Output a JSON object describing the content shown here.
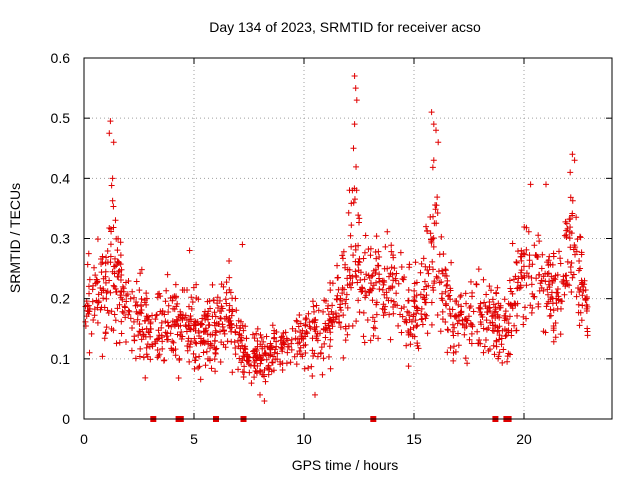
{
  "chart_data": {
    "type": "scatter",
    "title": "Day 134 of 2023, SRMTID for receiver acso",
    "xlabel": "GPS time / hours",
    "ylabel": "SRMTID / TECUs",
    "xlim": [
      0,
      24
    ],
    "ylim": [
      0,
      0.6
    ],
    "x_ticks": [
      0,
      5,
      10,
      15,
      20
    ],
    "x_tick_labels": [
      "0",
      "5",
      "10",
      "15",
      "20"
    ],
    "y_ticks": [
      0,
      0.1,
      0.2,
      0.3,
      0.4,
      0.5,
      0.6
    ],
    "y_tick_labels": [
      "0",
      "0.1",
      "0.2",
      "0.3",
      "0.4",
      "0.5",
      "0.6"
    ],
    "grid": true,
    "marker": "plus",
    "color": "#e00000",
    "profile": [
      [
        0.0,
        0.19,
        0.06
      ],
      [
        0.5,
        0.2,
        0.07
      ],
      [
        1.0,
        0.2,
        0.08
      ],
      [
        1.3,
        0.28,
        0.12
      ],
      [
        1.6,
        0.22,
        0.08
      ],
      [
        2.0,
        0.19,
        0.07
      ],
      [
        2.5,
        0.18,
        0.07
      ],
      [
        3.0,
        0.14,
        0.05
      ],
      [
        3.5,
        0.15,
        0.06
      ],
      [
        4.0,
        0.16,
        0.06
      ],
      [
        4.5,
        0.15,
        0.06
      ],
      [
        5.0,
        0.15,
        0.06
      ],
      [
        5.5,
        0.14,
        0.05
      ],
      [
        6.0,
        0.16,
        0.06
      ],
      [
        6.5,
        0.17,
        0.06
      ],
      [
        7.0,
        0.15,
        0.06
      ],
      [
        7.5,
        0.1,
        0.04
      ],
      [
        8.0,
        0.1,
        0.04
      ],
      [
        8.5,
        0.11,
        0.04
      ],
      [
        9.0,
        0.12,
        0.04
      ],
      [
        9.5,
        0.13,
        0.04
      ],
      [
        10.0,
        0.13,
        0.05
      ],
      [
        10.5,
        0.14,
        0.05
      ],
      [
        11.0,
        0.15,
        0.06
      ],
      [
        11.5,
        0.19,
        0.07
      ],
      [
        12.0,
        0.23,
        0.09
      ],
      [
        12.3,
        0.3,
        0.13
      ],
      [
        12.6,
        0.24,
        0.09
      ],
      [
        13.0,
        0.21,
        0.07
      ],
      [
        13.5,
        0.22,
        0.08
      ],
      [
        14.0,
        0.22,
        0.08
      ],
      [
        14.5,
        0.19,
        0.07
      ],
      [
        15.0,
        0.17,
        0.06
      ],
      [
        15.5,
        0.22,
        0.08
      ],
      [
        15.9,
        0.3,
        0.12
      ],
      [
        16.3,
        0.22,
        0.08
      ],
      [
        16.8,
        0.16,
        0.05
      ],
      [
        17.5,
        0.17,
        0.06
      ],
      [
        18.0,
        0.18,
        0.06
      ],
      [
        18.5,
        0.17,
        0.06
      ],
      [
        19.0,
        0.14,
        0.05
      ],
      [
        19.5,
        0.2,
        0.07
      ],
      [
        20.0,
        0.24,
        0.08
      ],
      [
        20.5,
        0.25,
        0.08
      ],
      [
        21.0,
        0.22,
        0.07
      ],
      [
        21.5,
        0.2,
        0.07
      ],
      [
        22.0,
        0.28,
        0.1
      ],
      [
        22.3,
        0.3,
        0.1
      ],
      [
        22.6,
        0.22,
        0.07
      ],
      [
        22.9,
        0.17,
        0.05
      ]
    ],
    "spikes": [
      [
        1.2,
        0.495
      ],
      [
        1.15,
        0.475
      ],
      [
        1.35,
        0.46
      ],
      [
        1.3,
        0.4
      ],
      [
        4.8,
        0.28
      ],
      [
        7.2,
        0.29
      ],
      [
        12.3,
        0.57
      ],
      [
        12.35,
        0.55
      ],
      [
        12.4,
        0.53
      ],
      [
        12.3,
        0.49
      ],
      [
        12.25,
        0.45
      ],
      [
        15.8,
        0.51
      ],
      [
        15.9,
        0.49
      ],
      [
        16.0,
        0.48
      ],
      [
        15.9,
        0.43
      ],
      [
        22.2,
        0.44
      ],
      [
        22.3,
        0.43
      ],
      [
        22.1,
        0.41
      ],
      [
        21.0,
        0.39
      ],
      [
        20.3,
        0.39
      ],
      [
        12.2,
        0.38
      ],
      [
        16.1,
        0.46
      ],
      [
        8.2,
        0.03
      ],
      [
        8.0,
        0.04
      ],
      [
        10.5,
        0.04
      ]
    ],
    "n_points": 1500,
    "gap_markers_x": [
      3.15,
      4.3,
      4.4,
      6.0,
      7.25,
      13.15,
      18.7,
      19.2,
      19.3
    ]
  }
}
